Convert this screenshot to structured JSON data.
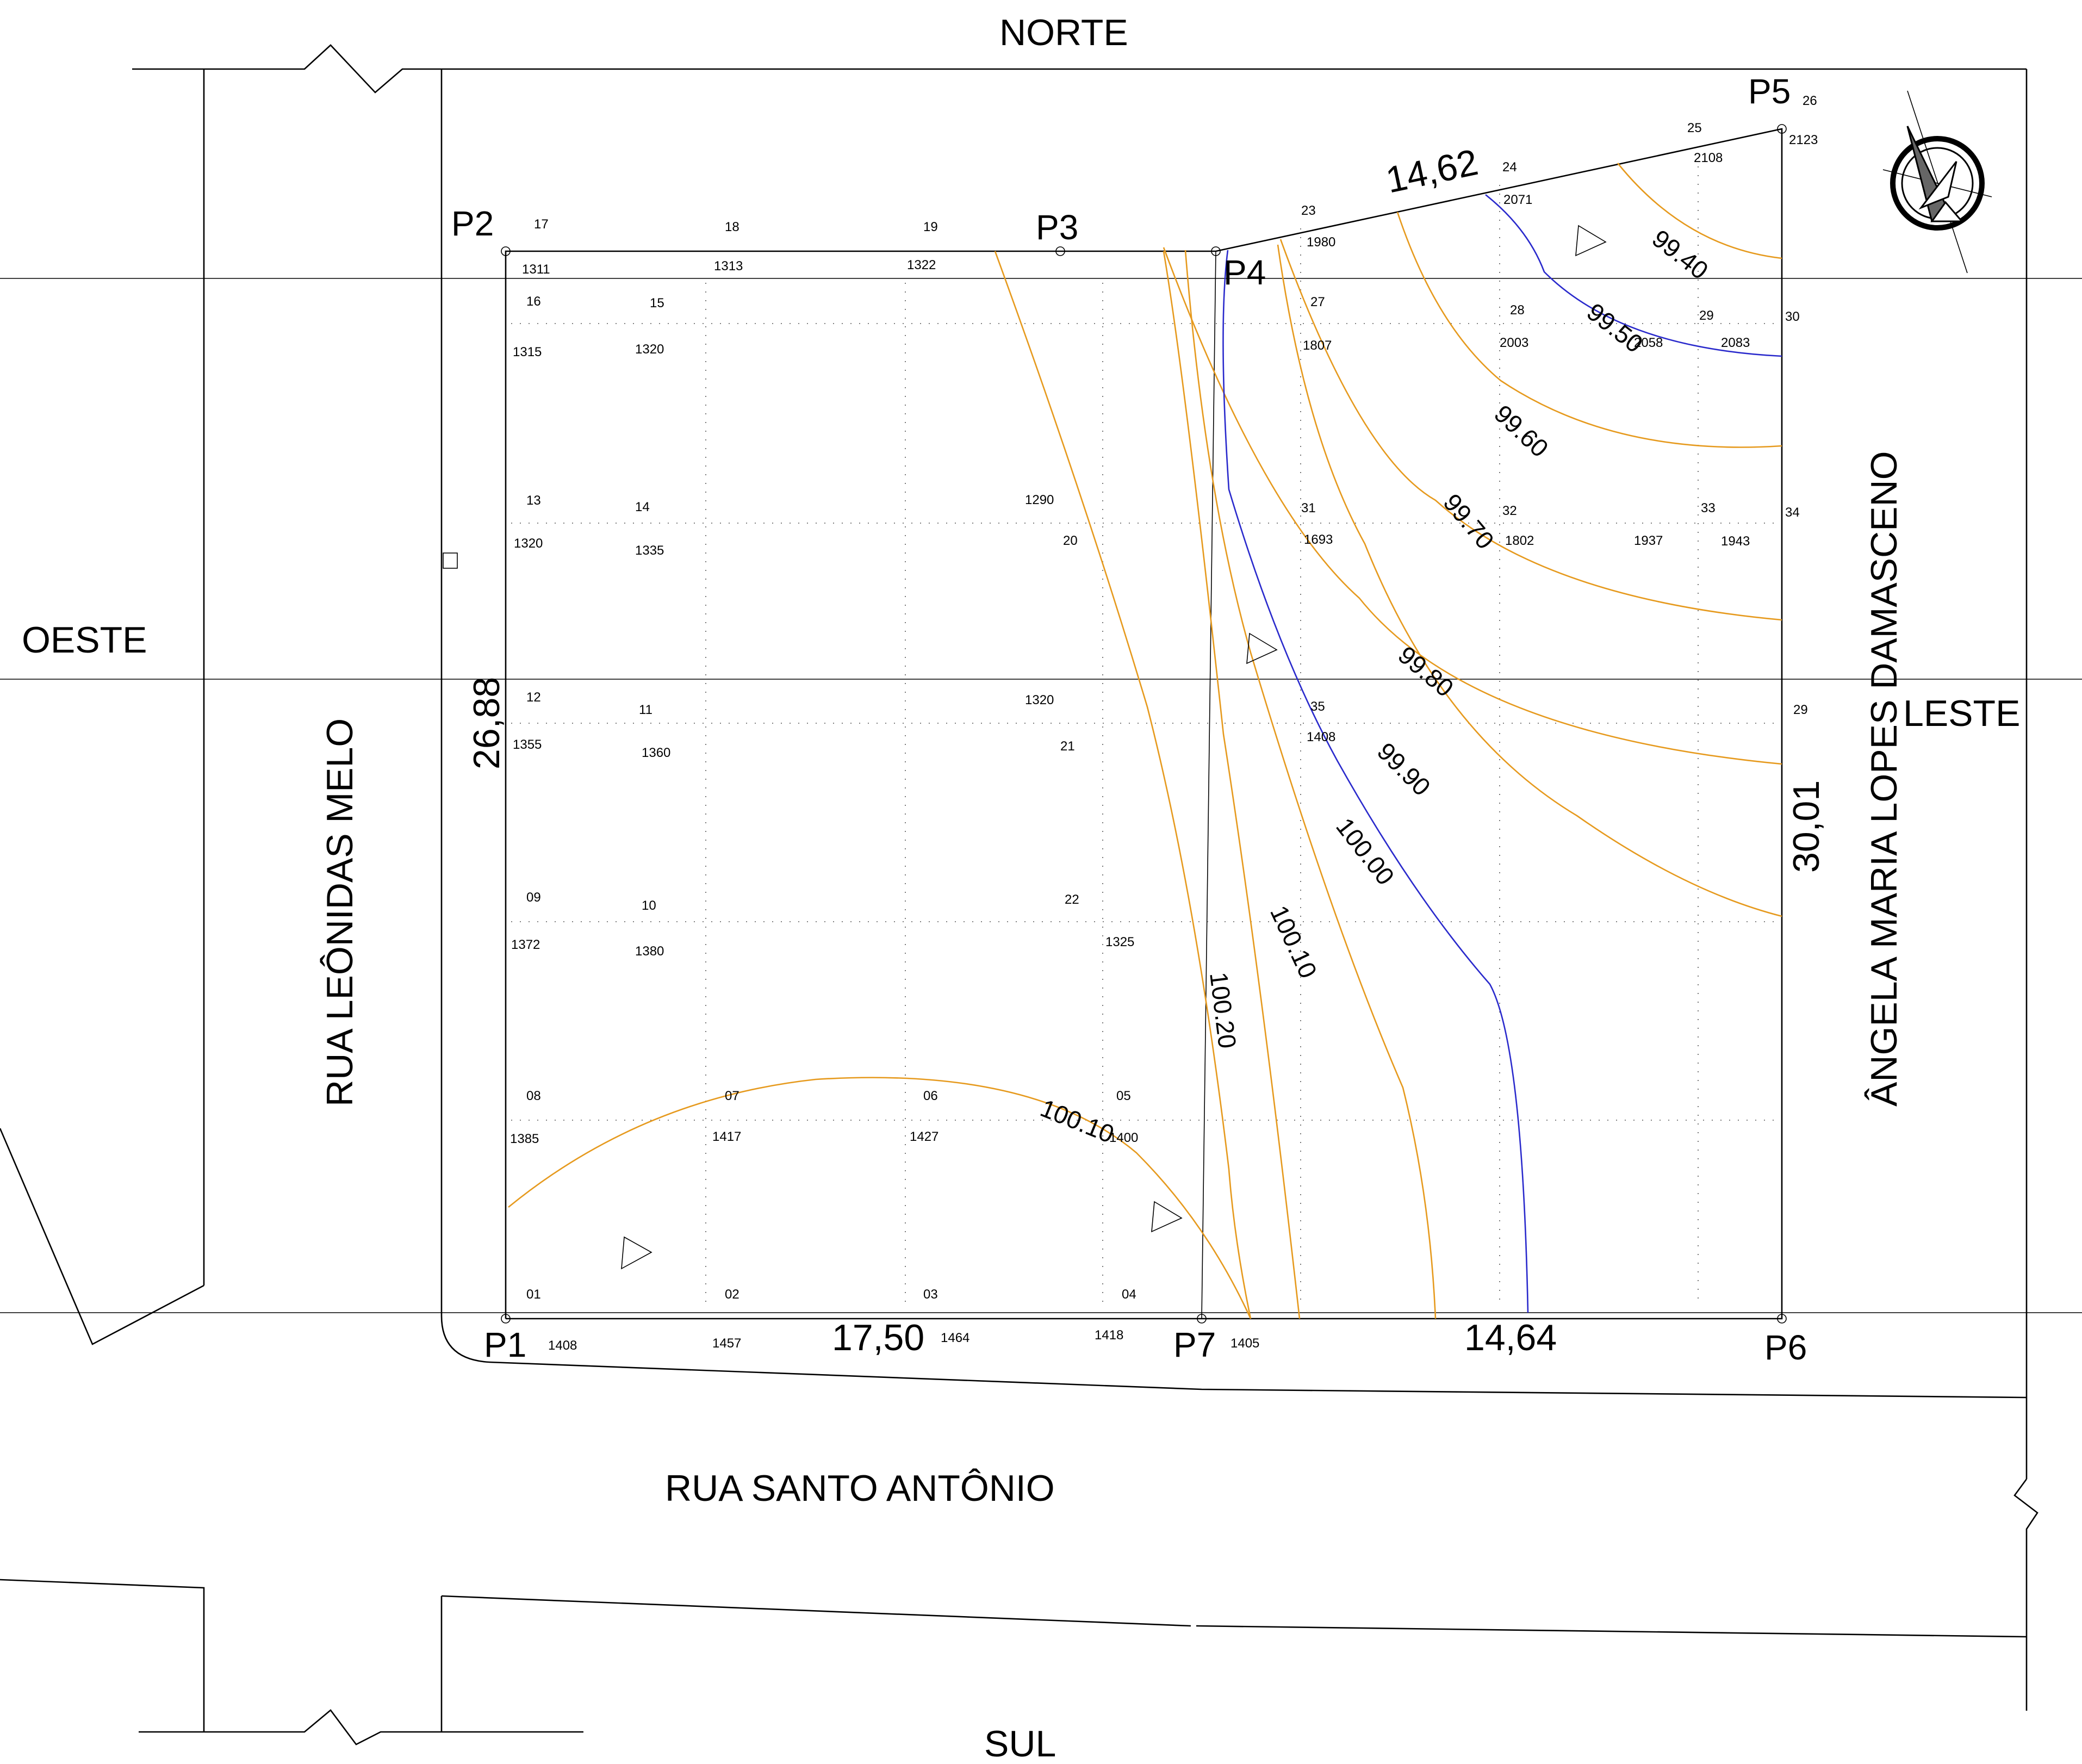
{
  "directions": {
    "north": "NORTE",
    "south": "SUL",
    "west": "OESTE",
    "east": "LESTE"
  },
  "streets": {
    "west": "RUA LEÔNIDAS MELO",
    "south": "RUA SANTO ANTÔNIO",
    "east": "ÂNGELA MARIA LOPES DAMASCENO"
  },
  "points": {
    "p1": "P1",
    "p2": "P2",
    "p3": "P3",
    "p4": "P4",
    "p5": "P5",
    "p6": "P6",
    "p7": "P7"
  },
  "dimensions": {
    "west": "26,88",
    "north_diag": "14,62",
    "south_left": "17,50",
    "south_right": "14,64",
    "east": "30,01"
  },
  "contours": {
    "c9940": "99.40",
    "c9950": "99.50",
    "c9960": "99.60",
    "c9970": "99.70",
    "c9980": "99.80",
    "c9990": "99.90",
    "c10000": "100.00",
    "c10010a": "100.10",
    "c10020": "100.20",
    "c10010b": "100.10"
  },
  "grid_labels": [
    "17",
    "1311",
    "18",
    "1313",
    "19",
    "1322",
    "23",
    "1980",
    "24",
    "2071",
    "25",
    "2108",
    "26",
    "2123",
    "16",
    "1315",
    "15",
    "1320",
    "27",
    "1807",
    "28",
    "2003",
    "2058",
    "29",
    "2083",
    "30",
    "13",
    "1320",
    "14",
    "1335",
    "1290",
    "20",
    "31",
    "1693",
    "32",
    "1802",
    "1937",
    "33",
    "1943",
    "34",
    "12",
    "1355",
    "11",
    "1360",
    "1320",
    "21",
    "35",
    "1408",
    "29",
    "09",
    "1372",
    "10",
    "1380",
    "22",
    "1325",
    "08",
    "1385",
    "07",
    "1417",
    "06",
    "1427",
    "05",
    "1400",
    "01",
    "1408",
    "02",
    "1457",
    "03",
    "1464",
    "04",
    "1418",
    "1405"
  ],
  "colors": {
    "contour_major": "#2a2acc",
    "contour_minor": "#e69a1e",
    "lines": "#000000"
  },
  "icons": [
    "compass-icon",
    "survey-triangle-icon"
  ]
}
